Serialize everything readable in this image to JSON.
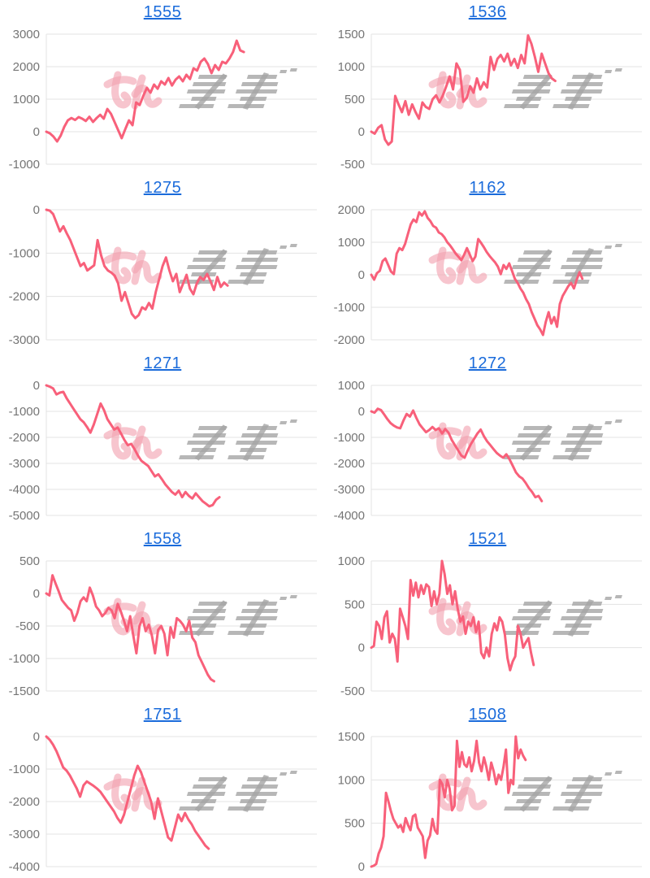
{
  "page": {
    "background": "#ffffff"
  },
  "colors": {
    "line": "#f8607a",
    "grid": "#e3e3e3",
    "tick_label": "#757575",
    "link": "#1a6bdb",
    "watermark_pink": "#f2a2b0",
    "watermark_gray": "#a5a5a5"
  },
  "watermark": {
    "text": "みんレポ"
  },
  "chart_data": {
    "note": "10 line charts (slot-machine payout graphs); see charts[] for series"
  },
  "charts": [
    {
      "id": "1555",
      "type": "line",
      "ticks": [
        3000,
        2000,
        1000,
        0,
        -1000
      ],
      "ylim": [
        -1000,
        3000
      ],
      "x_end": 0.73,
      "values": [
        0,
        -50,
        -150,
        -300,
        -120,
        150,
        350,
        420,
        360,
        450,
        400,
        330,
        460,
        300,
        420,
        520,
        400,
        700,
        550,
        300,
        50,
        -200,
        80,
        350,
        200,
        900,
        820,
        1100,
        1350,
        1200,
        1450,
        1320,
        1550,
        1450,
        1650,
        1420,
        1600,
        1700,
        1550,
        1750,
        1620,
        1950,
        1880,
        2150,
        2250,
        2080,
        1800,
        2050,
        1900,
        2150,
        2100,
        2250,
        2450,
        2800,
        2500,
        2450
      ]
    },
    {
      "id": "1536",
      "type": "line",
      "ticks": [
        1500,
        1000,
        500,
        0,
        -500
      ],
      "ylim": [
        -500,
        1500
      ],
      "x_end": 0.68,
      "values": [
        0,
        -30,
        60,
        100,
        -120,
        -200,
        -150,
        550,
        420,
        300,
        470,
        260,
        420,
        300,
        200,
        450,
        380,
        350,
        500,
        560,
        450,
        560,
        700,
        850,
        650,
        1050,
        950,
        460,
        520,
        700,
        600,
        820,
        650,
        760,
        680,
        1150,
        950,
        1120,
        1180,
        1080,
        1200,
        1020,
        1120,
        980,
        1180,
        1050,
        1480,
        1350,
        1150,
        920,
        1200,
        1050,
        900,
        820,
        780
      ]
    },
    {
      "id": "1275",
      "type": "line",
      "ticks": [
        0,
        -1000,
        -2000,
        -3000
      ],
      "ylim": [
        -3000,
        0
      ],
      "x_end": 0.67,
      "values": [
        0,
        -20,
        -100,
        -300,
        -500,
        -380,
        -550,
        -700,
        -900,
        -1100,
        -1300,
        -1230,
        -1400,
        -1340,
        -1280,
        -700,
        -1050,
        -1300,
        -1400,
        -1450,
        -1520,
        -1700,
        -2100,
        -1900,
        -2150,
        -2400,
        -2500,
        -2430,
        -2250,
        -2300,
        -2150,
        -2280,
        -1900,
        -1600,
        -1300,
        -1100,
        -1400,
        -1650,
        -1480,
        -1900,
        -1700,
        -1500,
        -1820,
        -1950,
        -1700,
        -1550,
        -1620,
        -1480,
        -1650,
        -1850,
        -1550,
        -1780,
        -1680,
        -1750
      ]
    },
    {
      "id": "1162",
      "type": "line",
      "ticks": [
        2000,
        1000,
        0,
        -1000,
        -2000
      ],
      "ylim": [
        -2000,
        2000
      ],
      "x_end": 0.78,
      "values": [
        0,
        -150,
        50,
        120,
        420,
        500,
        300,
        100,
        20,
        650,
        820,
        760,
        950,
        1250,
        1550,
        1700,
        1620,
        1920,
        1820,
        1950,
        1750,
        1650,
        1500,
        1450,
        1300,
        1250,
        1150,
        1000,
        900,
        780,
        650,
        550,
        450,
        620,
        820,
        620,
        420,
        560,
        1100,
        980,
        850,
        700,
        580,
        480,
        380,
        250,
        20,
        300,
        180,
        350,
        120,
        -120,
        -250,
        -420,
        -550,
        -750,
        -900,
        -1150,
        -1350,
        -1550,
        -1680,
        -1850,
        -1450,
        -1150,
        -1500,
        -1300,
        -1600,
        -900,
        -650,
        -500,
        -350,
        -250,
        -420,
        -150,
        80,
        -120
      ]
    },
    {
      "id": "1271",
      "type": "line",
      "ticks": [
        0,
        -1000,
        -2000,
        -3000,
        -4000,
        -5000
      ],
      "ylim": [
        -5000,
        0
      ],
      "x_end": 0.64,
      "values": [
        0,
        -50,
        -120,
        -350,
        -280,
        -250,
        -500,
        -700,
        -900,
        -1100,
        -1300,
        -1420,
        -1600,
        -1820,
        -1500,
        -1100,
        -700,
        -950,
        -1300,
        -1500,
        -1700,
        -1620,
        -1850,
        -2100,
        -2300,
        -2250,
        -2450,
        -2700,
        -2900,
        -3000,
        -3100,
        -3300,
        -3500,
        -3420,
        -3600,
        -3800,
        -3950,
        -4100,
        -4200,
        -4050,
        -4300,
        -4100,
        -4250,
        -4350,
        -4150,
        -4300,
        -4450,
        -4550,
        -4650,
        -4600,
        -4400,
        -4300
      ]
    },
    {
      "id": "1272",
      "type": "line",
      "ticks": [
        1000,
        0,
        -1000,
        -2000,
        -3000,
        -4000
      ],
      "ylim": [
        -4000,
        1000
      ],
      "x_end": 0.63,
      "values": [
        0,
        -50,
        100,
        50,
        -120,
        -300,
        -450,
        -550,
        -620,
        -650,
        -350,
        -100,
        -200,
        30,
        -250,
        -500,
        -650,
        -800,
        -720,
        -600,
        -720,
        -650,
        -850,
        -680,
        -820,
        -1100,
        -1300,
        -1500,
        -1700,
        -1780,
        -1500,
        -1250,
        -1050,
        -850,
        -700,
        -950,
        -1150,
        -1300,
        -1450,
        -1600,
        -1700,
        -1780,
        -1650,
        -1850,
        -2100,
        -2350,
        -2500,
        -2580,
        -2750,
        -2950,
        -3100,
        -3300,
        -3250,
        -3450
      ]
    },
    {
      "id": "1558",
      "type": "line",
      "ticks": [
        500,
        0,
        -500,
        -1000,
        -1500
      ],
      "ylim": [
        -1500,
        500
      ],
      "x_end": 0.62,
      "values": [
        0,
        -30,
        280,
        150,
        30,
        -100,
        -160,
        -220,
        -260,
        -420,
        -300,
        -120,
        -60,
        -120,
        90,
        -30,
        -200,
        -260,
        -350,
        -300,
        -220,
        -260,
        -380,
        -160,
        -280,
        -420,
        -580,
        -350,
        -650,
        -920,
        -500,
        -380,
        -580,
        -480,
        -650,
        -920,
        -560,
        -500,
        -620,
        -950,
        -520,
        -680,
        -380,
        -420,
        -480,
        -580,
        -420,
        -680,
        -750,
        -950,
        -1050,
        -1150,
        -1250,
        -1320,
        -1350
      ]
    },
    {
      "id": "1521",
      "type": "line",
      "ticks": [
        1000,
        500,
        0,
        -500
      ],
      "ylim": [
        -500,
        1000
      ],
      "x_end": 0.6,
      "values": [
        0,
        20,
        300,
        250,
        100,
        350,
        420,
        60,
        160,
        100,
        -160,
        450,
        350,
        250,
        100,
        780,
        600,
        750,
        580,
        720,
        620,
        730,
        700,
        480,
        650,
        500,
        620,
        1000,
        850,
        620,
        720,
        500,
        650,
        450,
        300,
        360,
        160,
        300,
        250,
        350,
        180,
        300,
        -60,
        -120,
        0,
        -100,
        160,
        280,
        200,
        350,
        300,
        150,
        -120,
        -260,
        -160,
        -100,
        250,
        160,
        0,
        60,
        110,
        -60,
        -200
      ]
    },
    {
      "id": "1751",
      "type": "line",
      "ticks": [
        0,
        -1000,
        -2000,
        -3000,
        -4000
      ],
      "ylim": [
        -4000,
        0
      ],
      "x_end": 0.6,
      "values": [
        0,
        -100,
        -250,
        -450,
        -700,
        -950,
        -1050,
        -1200,
        -1400,
        -1600,
        -1850,
        -1500,
        -1380,
        -1450,
        -1520,
        -1600,
        -1700,
        -1850,
        -2000,
        -2150,
        -2300,
        -2500,
        -2650,
        -2400,
        -2000,
        -1600,
        -1200,
        -900,
        -1100,
        -1400,
        -1700,
        -2000,
        -2530,
        -1900,
        -2300,
        -2700,
        -3100,
        -3200,
        -2800,
        -2400,
        -2600,
        -2350,
        -2550,
        -2700,
        -2900,
        -3050,
        -3200,
        -3350,
        -3450
      ]
    },
    {
      "id": "1508",
      "type": "line",
      "ticks": [
        1500,
        1000,
        500,
        0
      ],
      "ylim": [
        0,
        1500
      ],
      "x_end": 0.57,
      "values": [
        0,
        10,
        30,
        150,
        220,
        350,
        850,
        750,
        640,
        550,
        500,
        450,
        480,
        400,
        560,
        480,
        420,
        580,
        600,
        450,
        400,
        350,
        100,
        300,
        360,
        550,
        420,
        380,
        1000,
        950,
        800,
        1000,
        900,
        650,
        700,
        1450,
        1150,
        1320,
        1180,
        1150,
        1260,
        1100,
        1220,
        1450,
        1200,
        1100,
        1260,
        1150,
        1000,
        1200,
        1100,
        950,
        1060,
        1000,
        1150,
        1350,
        850,
        1000,
        950,
        1500,
        1250,
        1350,
        1280,
        1230
      ]
    }
  ]
}
